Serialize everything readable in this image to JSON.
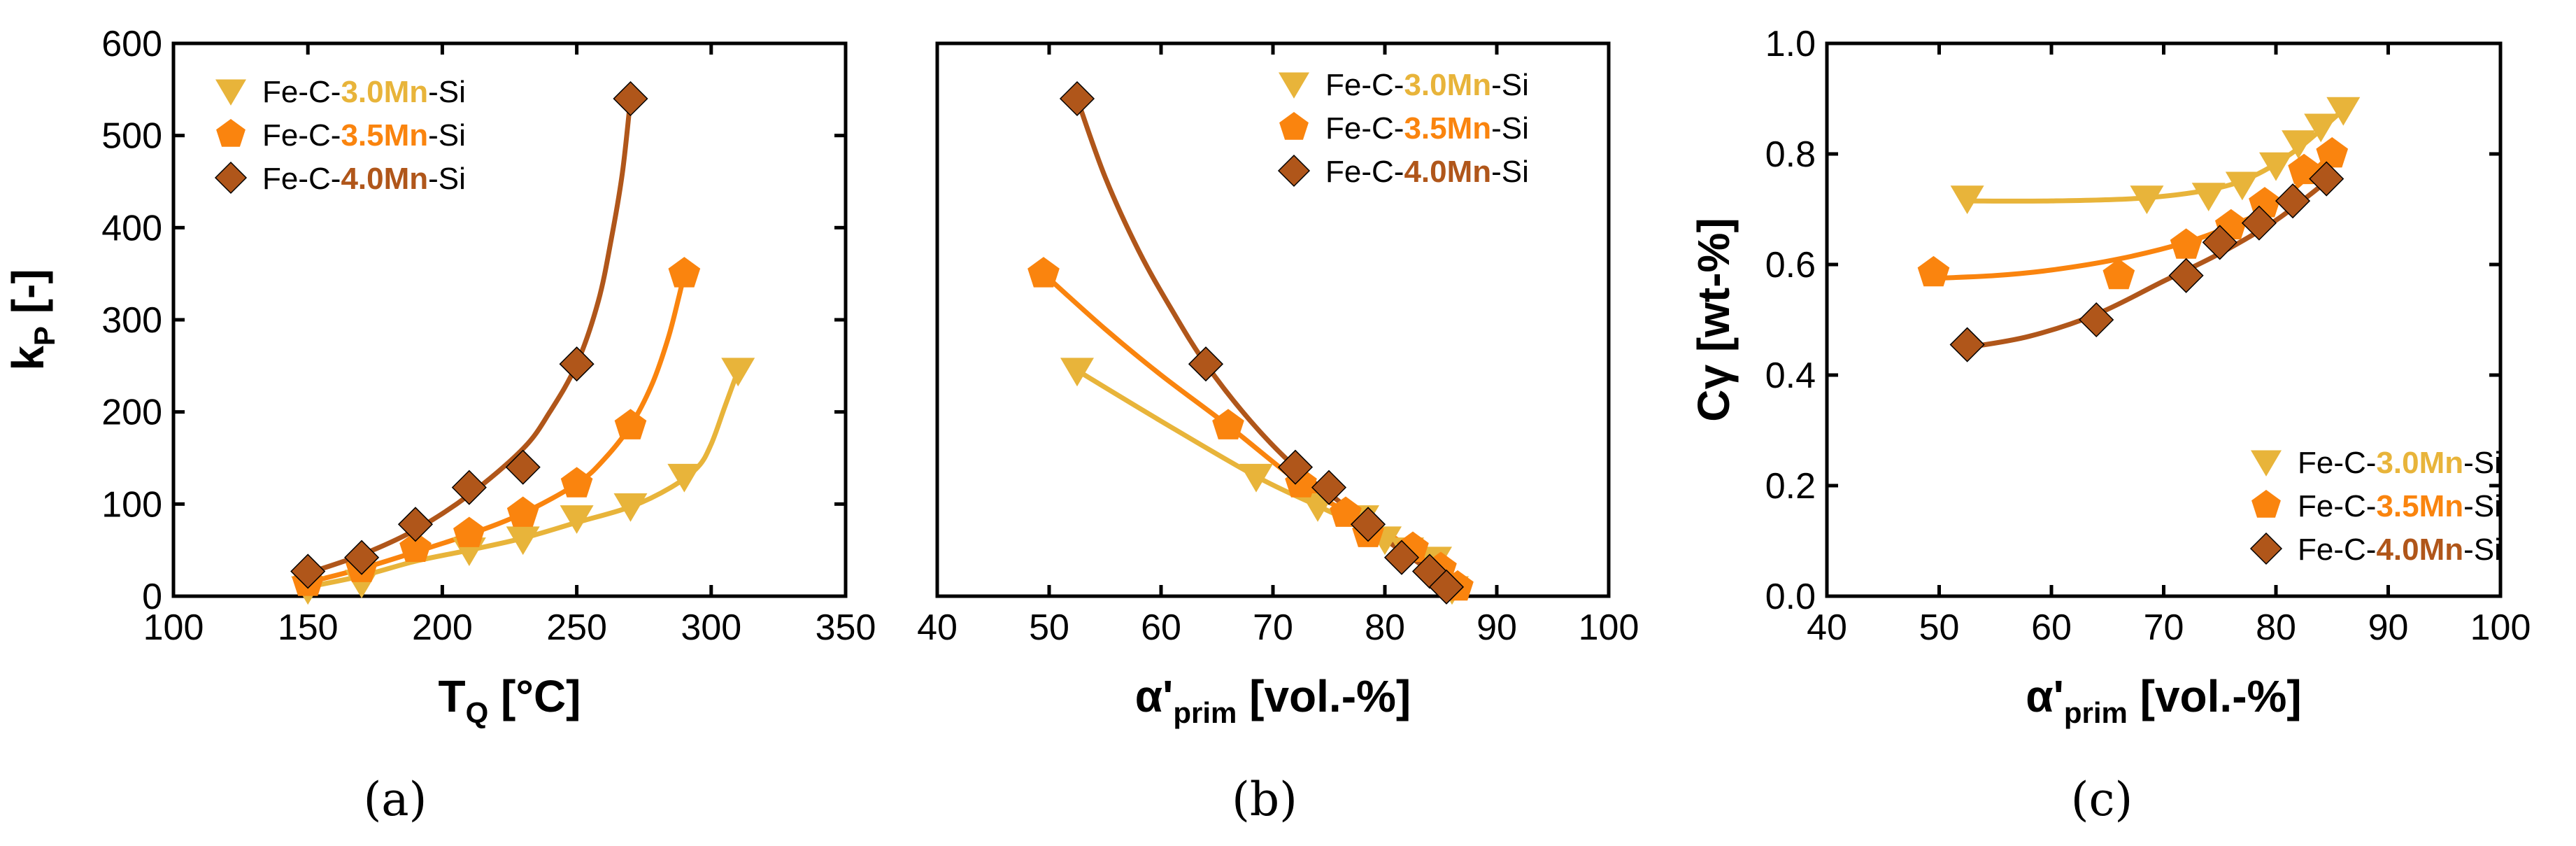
{
  "colors": {
    "mn30": "#E8B43A",
    "mn35": "#FA840E",
    "mn40": "#B0561A"
  },
  "legend": {
    "prefix": "Fe-C-",
    "suffix": "-Si",
    "entries": [
      {
        "bold": "3.0Mn",
        "series": "mn30",
        "marker": "triangle-down"
      },
      {
        "bold": "3.5Mn",
        "series": "mn35",
        "marker": "pentagon"
      },
      {
        "bold": "4.0Mn",
        "series": "mn40",
        "marker": "diamond"
      }
    ]
  },
  "panel_labels": [
    "(a)",
    "(b)",
    "(c)"
  ],
  "chart_data": [
    {
      "type": "scatter",
      "panel": "(a)",
      "xlabel_main": "T",
      "xlabel_sub": "Q",
      "xlabel_rest": " [°C]",
      "ylabel_main": "k",
      "ylabel_sub": "P",
      "ylabel_rest": " [-]",
      "xlim": [
        100,
        350
      ],
      "ylim": [
        0,
        600
      ],
      "xticks": [
        100,
        150,
        200,
        250,
        300,
        350
      ],
      "yticks": [
        0,
        100,
        200,
        300,
        400,
        500,
        600
      ],
      "legend_position": "top-left",
      "series": [
        {
          "name": "Fe-C-3.0Mn-Si",
          "key": "mn30",
          "x": [
            150,
            170,
            210,
            230,
            250,
            270,
            290,
            310
          ],
          "y": [
            8,
            15,
            50,
            62,
            85,
            98,
            130,
            245
          ],
          "fit_x": [
            150,
            170,
            190,
            210,
            230,
            250,
            270,
            285,
            295,
            300,
            305,
            310
          ],
          "fit_y": [
            10,
            22,
            38,
            50,
            63,
            80,
            97,
            118,
            140,
            165,
            205,
            245
          ]
        },
        {
          "name": "Fe-C-3.5Mn-Si",
          "key": "mn35",
          "x": [
            150,
            170,
            190,
            210,
            230,
            250,
            270,
            290
          ],
          "y": [
            15,
            30,
            52,
            68,
            90,
            122,
            185,
            350
          ],
          "fit_x": [
            150,
            170,
            190,
            210,
            230,
            250,
            260,
            270,
            278,
            284,
            288,
            290
          ],
          "fit_y": [
            15,
            30,
            48,
            67,
            90,
            122,
            148,
            185,
            230,
            280,
            325,
            350
          ]
        },
        {
          "name": "Fe-C-4.0Mn-Si",
          "key": "mn40",
          "x": [
            150,
            170,
            190,
            210,
            230,
            250,
            270
          ],
          "y": [
            27,
            42,
            78,
            118,
            140,
            252,
            540
          ],
          "fit_x": [
            150,
            170,
            190,
            210,
            230,
            240,
            250,
            258,
            263,
            267,
            270
          ],
          "fit_y": [
            25,
            45,
            72,
            110,
            160,
            200,
            252,
            320,
            390,
            460,
            540
          ]
        }
      ]
    },
    {
      "type": "scatter",
      "panel": "(b)",
      "xlabel_main": "α'",
      "xlabel_sub": "prim",
      "xlabel_rest": " [vol.-%]",
      "ylabel_main": "",
      "xlim": [
        40,
        100
      ],
      "ylim": [
        0,
        600
      ],
      "xticks": [
        40,
        50,
        60,
        70,
        80,
        90,
        100
      ],
      "yticks": [],
      "legend_position": "top-right",
      "series": [
        {
          "name": "Fe-C-3.0Mn-Si",
          "key": "mn30",
          "x": [
            52.5,
            68.5,
            74,
            78,
            80,
            82,
            84.5,
            86
          ],
          "y": [
            245,
            130,
            98,
            85,
            62,
            50,
            40,
            8
          ],
          "fit_x": [
            52.5,
            60,
            68.5,
            74,
            78,
            82,
            84.5,
            86
          ],
          "fit_y": [
            245,
            190,
            130,
            98,
            75,
            50,
            30,
            10
          ]
        },
        {
          "name": "Fe-C-3.5Mn-Si",
          "key": "mn35",
          "x": [
            49.5,
            66,
            72.5,
            76.5,
            78.5,
            82.5,
            85,
            86.5
          ],
          "y": [
            350,
            185,
            122,
            90,
            68,
            52,
            30,
            10
          ],
          "fit_x": [
            49.5,
            55,
            60,
            66,
            72.5,
            76.5,
            80,
            83,
            86.5
          ],
          "fit_y": [
            350,
            290,
            240,
            185,
            122,
            92,
            70,
            45,
            10
          ]
        },
        {
          "name": "Fe-C-4.0Mn-Si",
          "key": "mn40",
          "x": [
            52.5,
            64,
            72,
            75,
            78.5,
            81.5,
            84,
            85.5
          ],
          "y": [
            540,
            252,
            140,
            118,
            78,
            42,
            27,
            10
          ],
          "fit_x": [
            52.5,
            55,
            58,
            61,
            64,
            68,
            72,
            76,
            80,
            84,
            86
          ],
          "fit_y": [
            540,
            455,
            375,
            310,
            252,
            190,
            140,
            102,
            62,
            28,
            10
          ]
        }
      ]
    },
    {
      "type": "scatter",
      "panel": "(c)",
      "xlabel_main": "α'",
      "xlabel_sub": "prim",
      "xlabel_rest": " [vol.-%]",
      "ylabel_main": "Cγ",
      "ylabel_sub": "",
      "ylabel_rest": " [wt-%]",
      "xlim": [
        40,
        100
      ],
      "ylim": [
        0.0,
        1.0
      ],
      "xticks": [
        40,
        50,
        60,
        70,
        80,
        90,
        100
      ],
      "yticks": [
        0.0,
        0.2,
        0.4,
        0.6,
        0.8,
        1.0
      ],
      "ytick_labels": [
        "0.0",
        "0.2",
        "0.4",
        "0.6",
        "0.8",
        "1.0"
      ],
      "legend_position": "bottom-right",
      "series": [
        {
          "name": "Fe-C-3.0Mn-Si",
          "key": "mn30",
          "x": [
            52.5,
            68.5,
            74,
            77,
            80,
            82,
            84,
            86
          ],
          "y": [
            0.72,
            0.72,
            0.725,
            0.745,
            0.78,
            0.82,
            0.85,
            0.88
          ],
          "fit_x": [
            52.5,
            60,
            68,
            74,
            78,
            82,
            86
          ],
          "fit_y": [
            0.715,
            0.715,
            0.72,
            0.735,
            0.76,
            0.81,
            0.88
          ]
        },
        {
          "name": "Fe-C-3.5Mn-Si",
          "key": "mn35",
          "x": [
            49.5,
            66,
            72,
            76,
            79,
            82.5,
            85
          ],
          "y": [
            0.585,
            0.58,
            0.635,
            0.67,
            0.71,
            0.77,
            0.8
          ],
          "fit_x": [
            49.5,
            55,
            60,
            66,
            72,
            76,
            80,
            85
          ],
          "fit_y": [
            0.575,
            0.58,
            0.59,
            0.61,
            0.64,
            0.67,
            0.71,
            0.8
          ]
        },
        {
          "name": "Fe-C-4.0Mn-Si",
          "key": "mn40",
          "x": [
            52.5,
            64,
            72,
            75,
            78.5,
            81.5,
            84.5
          ],
          "y": [
            0.455,
            0.5,
            0.58,
            0.64,
            0.675,
            0.715,
            0.755
          ],
          "fit_x": [
            52.5,
            58,
            64,
            70,
            75,
            80,
            84.5
          ],
          "fit_y": [
            0.45,
            0.47,
            0.51,
            0.57,
            0.62,
            0.68,
            0.75
          ]
        }
      ]
    }
  ]
}
